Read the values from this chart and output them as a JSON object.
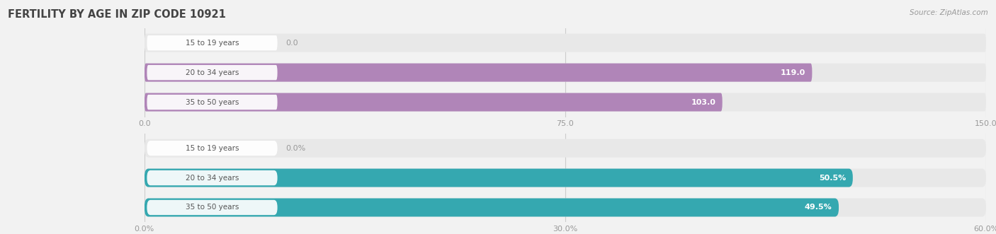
{
  "title": "FERTILITY BY AGE IN ZIP CODE 10921",
  "source": "Source: ZipAtlas.com",
  "top_chart": {
    "categories": [
      "15 to 19 years",
      "20 to 34 years",
      "35 to 50 years"
    ],
    "values": [
      0.0,
      119.0,
      103.0
    ],
    "xlim": [
      0,
      150
    ],
    "xticks": [
      0.0,
      75.0,
      150.0
    ],
    "xtick_labels": [
      "0.0",
      "75.0",
      "150.0"
    ],
    "bar_color": "#b085b8",
    "bar_bg_color": "#e8e8e8",
    "label_color": "#ffffff",
    "label_zero_color": "#999999",
    "bar_height": 0.62
  },
  "bottom_chart": {
    "categories": [
      "15 to 19 years",
      "20 to 34 years",
      "35 to 50 years"
    ],
    "values": [
      0.0,
      50.5,
      49.5
    ],
    "xlim": [
      0,
      60
    ],
    "xticks": [
      0.0,
      30.0,
      60.0
    ],
    "xtick_labels": [
      "0.0%",
      "30.0%",
      "60.0%"
    ],
    "bar_color": "#35a8b0",
    "bar_bg_color": "#e8e8e8",
    "label_color": "#ffffff",
    "label_zero_color": "#999999",
    "bar_height": 0.62
  },
  "bg_color": "#f2f2f2",
  "label_bg_color": "#ffffff",
  "title_color": "#444444",
  "source_color": "#999999",
  "axis_text_color": "#999999",
  "category_text_color": "#555555",
  "grid_color": "#cccccc"
}
